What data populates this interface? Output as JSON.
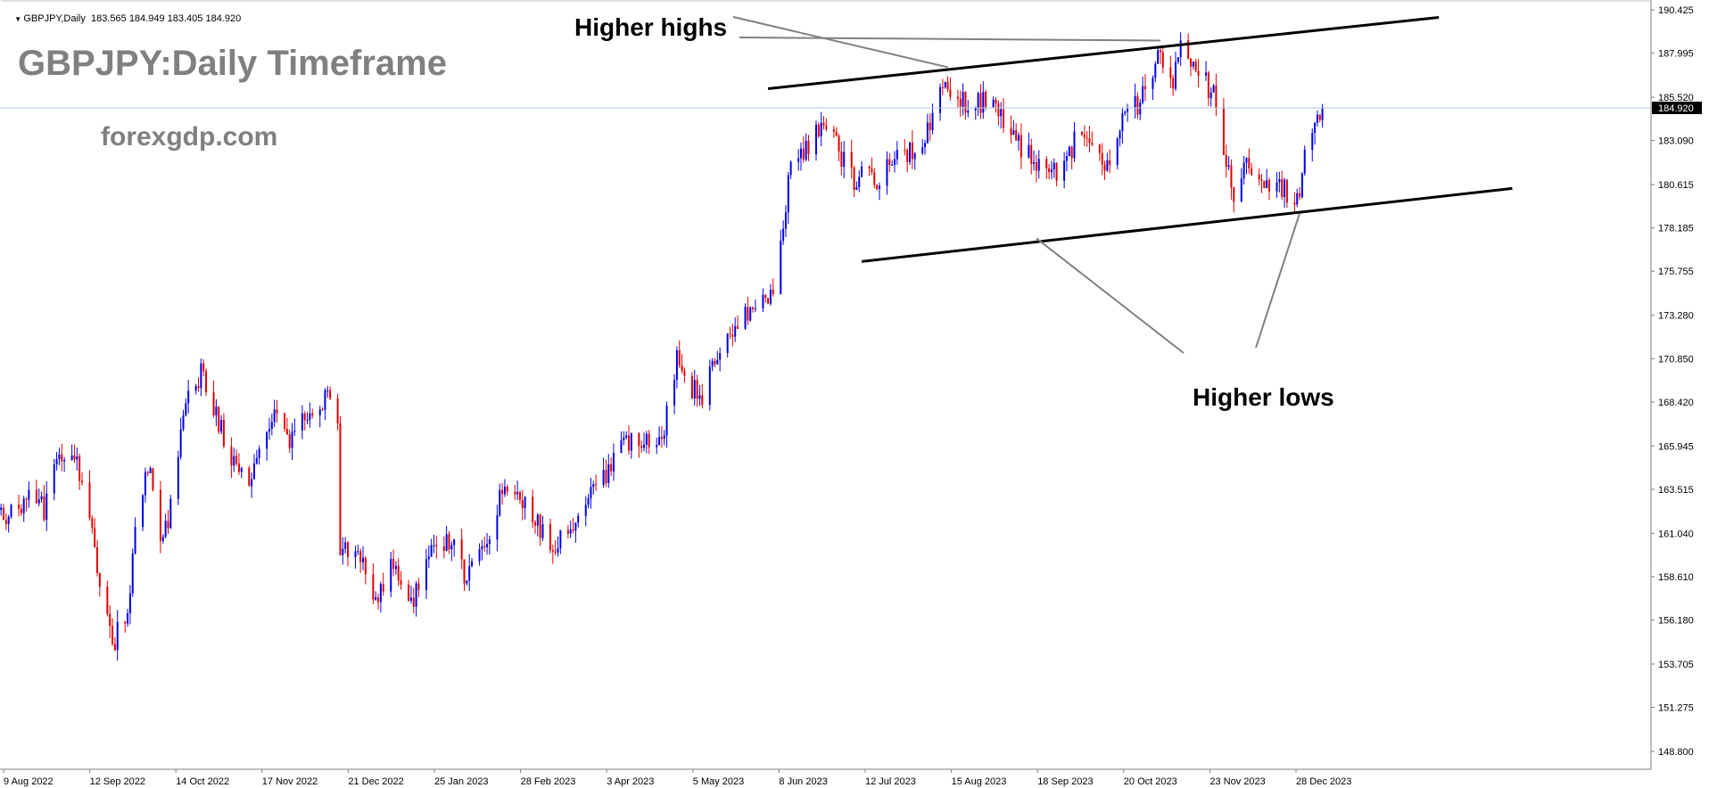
{
  "header": {
    "symbol": "GBPJPY,Daily",
    "ohlc": "183.565 184.949 183.405 184.920"
  },
  "overlay": {
    "title": "GBPJPY:Daily Timeframe",
    "website": "forexgdp.com",
    "annotation_highs": "Higher highs",
    "annotation_lows": "Higher lows"
  },
  "colors": {
    "bull": "#0000e6",
    "bear": "#e00000",
    "grid_axis": "#808080",
    "last_price_line": "#b0c4de",
    "trendline": "#000000",
    "arrow": "#808080"
  },
  "chart_data": {
    "type": "candlestick",
    "symbol": "GBPJPY",
    "timeframe": "Daily",
    "last_price": 184.92,
    "last_price_label": "184.920",
    "ylim": [
      147.8,
      190.8
    ],
    "y_ticks": [
      "190.425",
      "187.995",
      "185.520",
      "183.090",
      "180.615",
      "178.185",
      "175.755",
      "173.280",
      "170.850",
      "168.420",
      "165.945",
      "163.515",
      "161.040",
      "158.610",
      "156.180",
      "153.705",
      "151.275",
      "148.800"
    ],
    "x_ticks": [
      "9 Aug 2022",
      "12 Sep 2022",
      "14 Oct 2022",
      "17 Nov 2022",
      "21 Dec 2022",
      "25 Jan 2023",
      "28 Feb 2023",
      "3 Apr 2023",
      "5 May 2023",
      "8 Jun 2023",
      "12 Jul 2023",
      "15 Aug 2023",
      "18 Sep 2023",
      "20 Oct 2023",
      "23 Nov 2023",
      "28 Dec 2023"
    ],
    "trendlines": [
      {
        "name": "upper channel",
        "x0": "2023-06-07",
        "y0": 186.0,
        "x1": "2024-02-27",
        "y1": 190.0
      },
      {
        "name": "lower channel",
        "x0": "2023-07-14",
        "y0": 176.3,
        "x1": "2024-03-27",
        "y1": 180.4
      }
    ],
    "annotations": [
      {
        "text": "Higher highs",
        "points_to": [
          {
            "date": "2023-08-17",
            "price": 187.2
          },
          {
            "date": "2023-11-09",
            "price": 188.7
          }
        ]
      },
      {
        "text": "Higher lows",
        "points_to": [
          {
            "date": "2023-09-21",
            "price": 177.6
          },
          {
            "date": "2024-01-03",
            "price": 179.0
          }
        ]
      }
    ],
    "anchors": [
      [
        "2022-08-01",
        162.8
      ],
      [
        "2022-08-12",
        162.0
      ],
      [
        "2022-08-19",
        163.5
      ],
      [
        "2022-08-25",
        162.3
      ],
      [
        "2022-08-31",
        165.5
      ],
      [
        "2022-09-06",
        165.0
      ],
      [
        "2022-09-09",
        164.2
      ],
      [
        "2022-09-14",
        160.0
      ],
      [
        "2022-09-21",
        155.5
      ],
      [
        "2022-09-22",
        155.1
      ],
      [
        "2022-09-27",
        156.5
      ],
      [
        "2022-09-30",
        161.0
      ],
      [
        "2022-10-05",
        165.0
      ],
      [
        "2022-10-10",
        160.5
      ],
      [
        "2022-10-14",
        162.5
      ],
      [
        "2022-10-20",
        168.5
      ],
      [
        "2022-10-26",
        170.0
      ],
      [
        "2022-10-31",
        168.0
      ],
      [
        "2022-11-07",
        165.0
      ],
      [
        "2022-11-14",
        164.0
      ],
      [
        "2022-11-18",
        166.0
      ],
      [
        "2022-11-24",
        168.0
      ],
      [
        "2022-11-30",
        166.5
      ],
      [
        "2022-12-07",
        167.5
      ],
      [
        "2022-12-14",
        168.8
      ],
      [
        "2022-12-19",
        167.0
      ],
      [
        "2022-12-20",
        160.5
      ],
      [
        "2022-12-28",
        160.0
      ],
      [
        "2023-01-03",
        157.5
      ],
      [
        "2023-01-10",
        159.5
      ],
      [
        "2023-01-17",
        157.0
      ],
      [
        "2023-01-25",
        160.5
      ],
      [
        "2023-02-01",
        160.8
      ],
      [
        "2023-02-08",
        158.5
      ],
      [
        "2023-02-15",
        160.0
      ],
      [
        "2023-02-22",
        163.5
      ],
      [
        "2023-03-01",
        163.0
      ],
      [
        "2023-03-08",
        161.5
      ],
      [
        "2023-03-15",
        160.5
      ],
      [
        "2023-03-22",
        161.5
      ],
      [
        "2023-03-29",
        164.0
      ],
      [
        "2023-04-05",
        164.5
      ],
      [
        "2023-04-12",
        166.0
      ],
      [
        "2023-04-18",
        166.5
      ],
      [
        "2023-04-26",
        166.0
      ],
      [
        "2023-05-02",
        171.0
      ],
      [
        "2023-05-09",
        169.0
      ],
      [
        "2023-05-12",
        168.5
      ],
      [
        "2023-05-19",
        171.5
      ],
      [
        "2023-05-26",
        173.0
      ],
      [
        "2023-06-02",
        173.5
      ],
      [
        "2023-06-09",
        175.0
      ],
      [
        "2023-06-16",
        181.5
      ],
      [
        "2023-06-23",
        183.0
      ],
      [
        "2023-06-30",
        184.0
      ],
      [
        "2023-07-05",
        182.5
      ],
      [
        "2023-07-11",
        181.0
      ],
      [
        "2023-07-14",
        181.5
      ],
      [
        "2023-07-18",
        180.8
      ],
      [
        "2023-07-21",
        181.0
      ],
      [
        "2023-07-28",
        182.5
      ],
      [
        "2023-08-04",
        182.5
      ],
      [
        "2023-08-11",
        184.5
      ],
      [
        "2023-08-16",
        186.5
      ],
      [
        "2023-08-21",
        185.5
      ],
      [
        "2023-08-28",
        185.0
      ],
      [
        "2023-09-04",
        185.5
      ],
      [
        "2023-09-11",
        183.5
      ],
      [
        "2023-09-19",
        182.0
      ],
      [
        "2023-09-22",
        181.5
      ],
      [
        "2023-09-29",
        181.5
      ],
      [
        "2023-10-06",
        183.0
      ],
      [
        "2023-10-13",
        182.5
      ],
      [
        "2023-10-19",
        182.0
      ],
      [
        "2023-10-26",
        184.5
      ],
      [
        "2023-11-02",
        185.5
      ],
      [
        "2023-11-09",
        188.0
      ],
      [
        "2023-11-14",
        186.0
      ],
      [
        "2023-11-17",
        188.5
      ],
      [
        "2023-11-24",
        187.0
      ],
      [
        "2023-11-30",
        185.5
      ],
      [
        "2023-12-05",
        182.0
      ],
      [
        "2023-12-07",
        180.0
      ],
      [
        "2023-12-13",
        181.5
      ],
      [
        "2023-12-19",
        180.5
      ],
      [
        "2023-12-28",
        180.5
      ],
      [
        "2024-01-02",
        179.5
      ],
      [
        "2024-01-05",
        182.0
      ],
      [
        "2024-01-10",
        184.0
      ],
      [
        "2024-01-12",
        184.92
      ]
    ]
  }
}
